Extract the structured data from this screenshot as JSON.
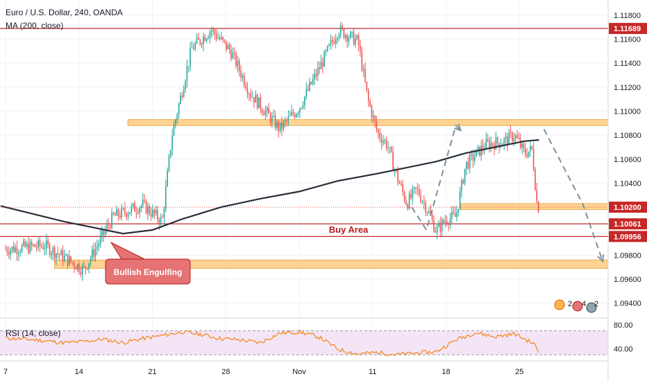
{
  "header": {
    "title": "Euro / U.S. Dollar, 240, OANDA",
    "indicator": "MA (200, close)"
  },
  "colors": {
    "up": "#26a69a",
    "down": "#ef5350",
    "ma": "#2a2e39",
    "level": "#c62828",
    "zone": "#ffcc80",
    "zone_border": "#e6a23c",
    "rsi_line": "#f57c00",
    "rsi_band": "#f3e5f5",
    "arrow": "#78909c",
    "callout": "#e57373"
  },
  "price_axis": {
    "min": 1.093,
    "max": 1.1188,
    "ticks": [
      "1.11800",
      "1.11600",
      "1.11400",
      "1.11200",
      "1.11000",
      "1.10800",
      "1.10600",
      "1.10400",
      "1.09800",
      "1.09600",
      "1.09400"
    ],
    "markers": [
      {
        "label": "1.11689",
        "value": 1.11689
      },
      {
        "label": "1.10200",
        "value": 1.102
      },
      {
        "label": "1.10061",
        "value": 1.10061
      },
      {
        "label": "1.09956",
        "value": 1.09956
      }
    ]
  },
  "time_axis": {
    "labels": [
      "7",
      "14",
      "21",
      "28",
      "Nov",
      "11",
      "18",
      "25"
    ]
  },
  "annotations": {
    "buy_area": "Buy Area",
    "bullish_engulfing": "Bullish Engulfing"
  },
  "rsi": {
    "title": "RSI (14, close)",
    "ticks": [
      "80.00",
      "40.00"
    ],
    "band": [
      30,
      70
    ]
  },
  "events": {
    "label_a": "2",
    "label_b": "4",
    "label_c": "2"
  },
  "chart_data": {
    "type": "candlestick",
    "title": "Euro / U.S. Dollar, 240, OANDA",
    "ylim": [
      1.093,
      1.1188
    ],
    "x_labels": [
      "7",
      "14",
      "21",
      "28",
      "Nov",
      "11",
      "18",
      "25"
    ],
    "price_path": [
      [
        0,
        1.0985
      ],
      [
        4,
        1.0988
      ],
      [
        8,
        1.0968
      ],
      [
        11,
        1.1012
      ],
      [
        14,
        1.1022
      ],
      [
        16,
        1.1008
      ],
      [
        17,
        1.108
      ],
      [
        19,
        1.1152
      ],
      [
        21,
        1.1168
      ],
      [
        23,
        1.115
      ],
      [
        25,
        1.1115
      ],
      [
        27,
        1.1095
      ],
      [
        28,
        1.1085
      ],
      [
        30,
        1.1103
      ],
      [
        32,
        1.1135
      ],
      [
        34,
        1.1168
      ],
      [
        36,
        1.1158
      ],
      [
        37,
        1.111
      ],
      [
        38,
        1.1082
      ],
      [
        39,
        1.1072
      ],
      [
        40,
        1.1045
      ],
      [
        41,
        1.1023
      ],
      [
        42,
        1.1035
      ],
      [
        43,
        1.102
      ],
      [
        44,
        1.1
      ],
      [
        45,
        1.101
      ],
      [
        46,
        1.1012
      ],
      [
        47,
        1.1055
      ],
      [
        49,
        1.1072
      ],
      [
        51,
        1.1075
      ],
      [
        52,
        1.108
      ],
      [
        53,
        1.1065
      ],
      [
        53.8,
        1.1068
      ],
      [
        54.3,
        1.1022
      ],
      [
        54.6,
        1.1018
      ]
    ],
    "ma_path": [
      [
        -0.5,
        1.1021
      ],
      [
        6,
        1.1008
      ],
      [
        12,
        1.0998
      ],
      [
        15,
        1.1001
      ],
      [
        18,
        1.101
      ],
      [
        22,
        1.102
      ],
      [
        26,
        1.1027
      ],
      [
        30,
        1.1033
      ],
      [
        34,
        1.1042
      ],
      [
        38,
        1.1048
      ],
      [
        41,
        1.1053
      ],
      [
        44,
        1.1058
      ],
      [
        47,
        1.1065
      ],
      [
        50,
        1.107
      ],
      [
        53,
        1.1075
      ],
      [
        54.5,
        1.1076
      ]
    ],
    "levels": [
      1.11689,
      1.10061,
      1.09956
    ],
    "current_price": 1.102,
    "zones": [
      {
        "from": 1.1088,
        "to": 1.1093,
        "x_start": 12.5,
        "x_end": 62
      },
      {
        "from": 1.1018,
        "to": 1.1023,
        "x_start": 46.5,
        "x_end": 62
      },
      {
        "from": 1.0969,
        "to": 1.0976,
        "x_start": 5,
        "x_end": 62
      }
    ],
    "projection_left": [
      [
        41.5,
        1.102
      ],
      [
        43,
        1.1001
      ],
      [
        46,
        1.1088
      ],
      [
        46.5,
        1.1084
      ]
    ],
    "projection_right": [
      [
        55,
        1.1085
      ],
      [
        59,
        1.1022
      ],
      [
        61,
        1.0975
      ]
    ],
    "rsi_path": [
      [
        0,
        58
      ],
      [
        3,
        55
      ],
      [
        6,
        50
      ],
      [
        8,
        52
      ],
      [
        10,
        56
      ],
      [
        12,
        50
      ],
      [
        14,
        57
      ],
      [
        16,
        62
      ],
      [
        18,
        68
      ],
      [
        20,
        64
      ],
      [
        22,
        57
      ],
      [
        24,
        55
      ],
      [
        26,
        50
      ],
      [
        28,
        66
      ],
      [
        30,
        68
      ],
      [
        32,
        60
      ],
      [
        34,
        39
      ],
      [
        36,
        31
      ],
      [
        38,
        34
      ],
      [
        40,
        30
      ],
      [
        42,
        33
      ],
      [
        44,
        35
      ],
      [
        46,
        55
      ],
      [
        48,
        67
      ],
      [
        50,
        60
      ],
      [
        52,
        65
      ],
      [
        54,
        48
      ],
      [
        54.6,
        31
      ]
    ],
    "rsi_ylim": [
      22,
      88
    ]
  }
}
